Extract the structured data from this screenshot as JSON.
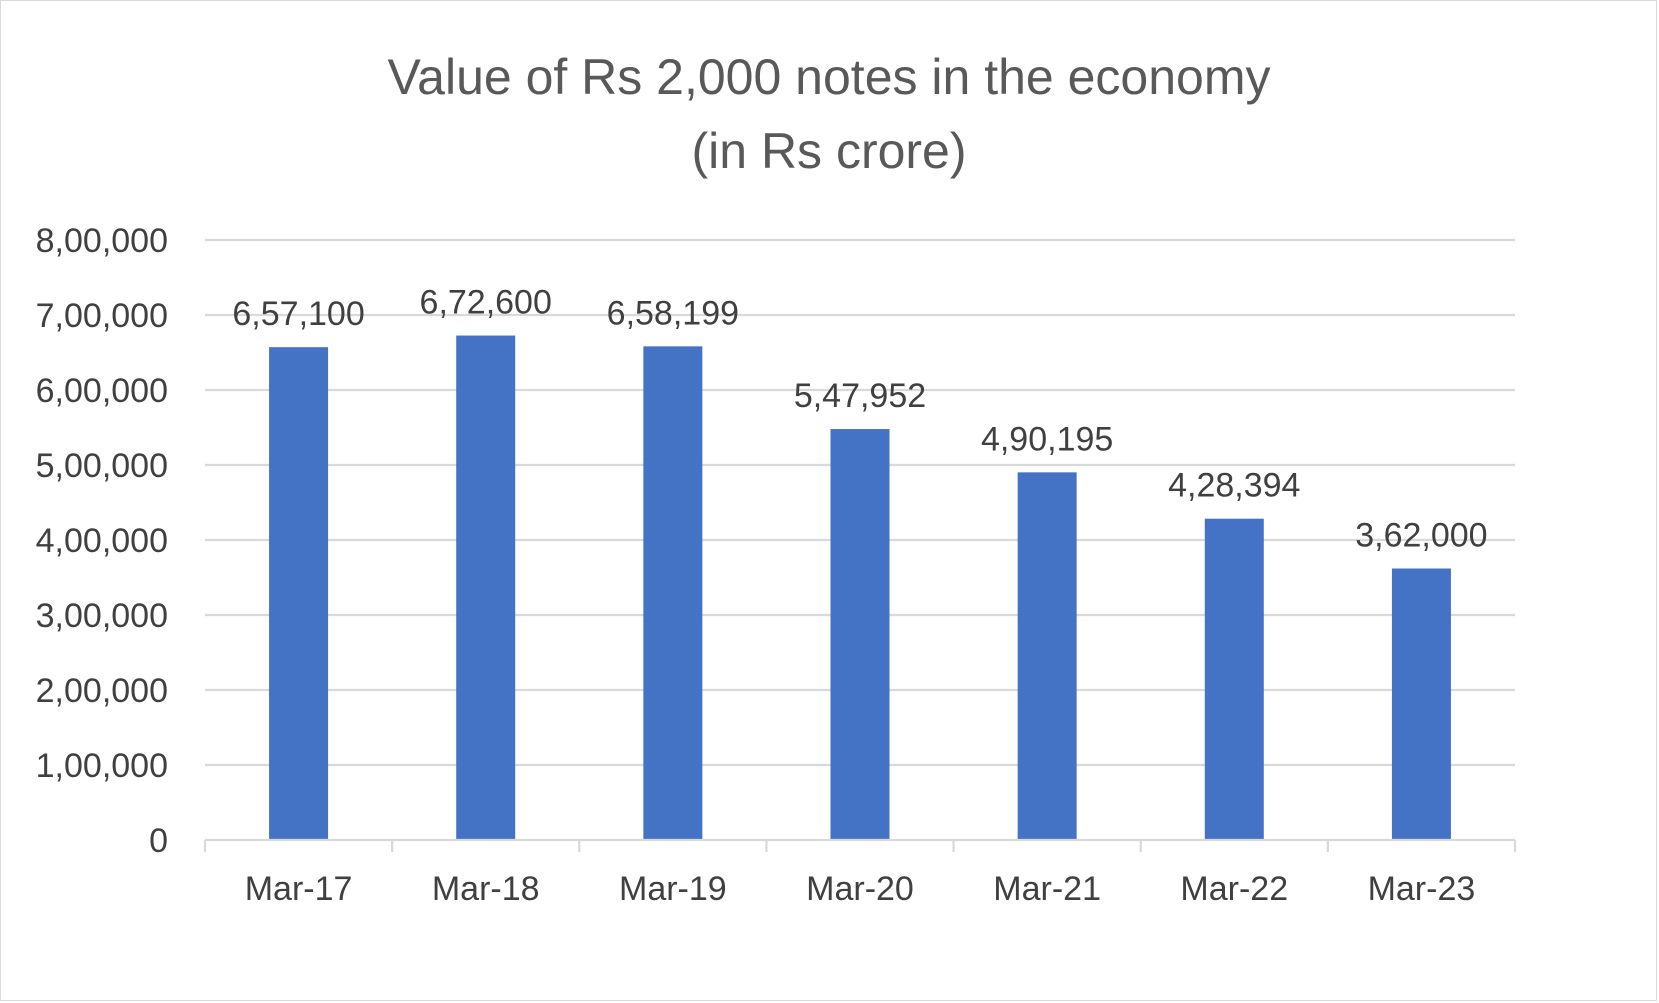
{
  "chart_data": {
    "type": "bar",
    "title": "Value of Rs 2,000 notes in the economy",
    "subtitle": "(in Rs crore)",
    "xlabel": "",
    "ylabel": "",
    "categories": [
      "Mar-17",
      "Mar-18",
      "Mar-19",
      "Mar-20",
      "Mar-21",
      "Mar-22",
      "Mar-23"
    ],
    "values": [
      657100,
      672600,
      658199,
      547952,
      490195,
      428394,
      362000
    ],
    "data_labels": [
      "6,57,100",
      "6,72,600",
      "6,58,199",
      "5,47,952",
      "4,90,195",
      "4,28,394",
      "3,62,000"
    ],
    "ylim": [
      0,
      800000
    ],
    "yticks": [
      0,
      100000,
      200000,
      300000,
      400000,
      500000,
      600000,
      700000,
      800000
    ],
    "ytick_labels": [
      "0",
      "1,00,000",
      "2,00,000",
      "3,00,000",
      "4,00,000",
      "5,00,000",
      "6,00,000",
      "7,00,000",
      "8,00,000"
    ],
    "grid": true,
    "legend": "none",
    "bar_color": "#4472c4",
    "grid_color": "#d9d9d9",
    "text_color": "#404040",
    "title_color": "#595959"
  }
}
